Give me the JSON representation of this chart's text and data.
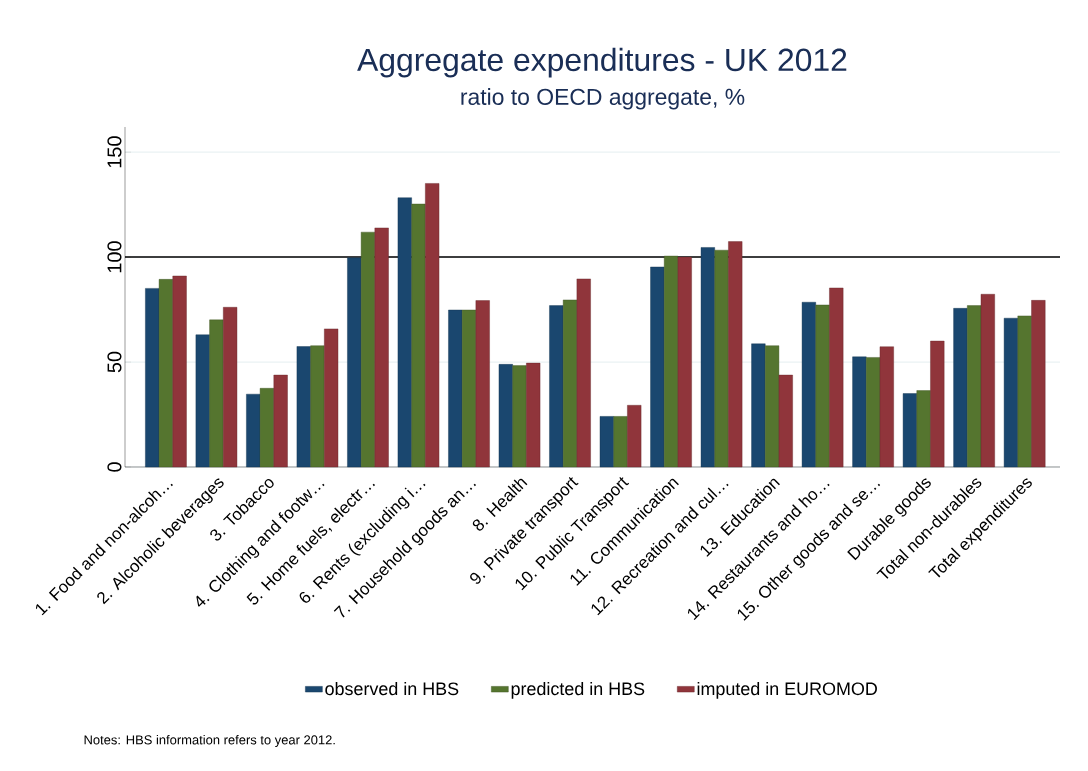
{
  "chart_data": {
    "type": "bar",
    "title": "Aggregate expenditures - UK 2012",
    "subtitle": "ratio to OECD aggregate, %",
    "categories": [
      "1. Food and non-alcoh…",
      "2. Alcoholic beverages",
      "3. Tobacco",
      "4. Clothing and footw…",
      "5. Home fuels, electr…",
      "6. Rents (excluding i…",
      "7. Household goods an…",
      "8. Health",
      "9. Private transport",
      "10. Public Transport",
      "11. Communication",
      "12. Recreation and cul…",
      "13. Education",
      "14. Restaurants and ho…",
      "15. Other goods and se…",
      "Durable goods",
      "Total non-durables",
      "Total expenditures"
    ],
    "series": [
      {
        "name": "observed in HBS",
        "color": "#1a476f",
        "values": [
          85.1,
          63.0,
          34.7,
          57.4,
          99.7,
          128.3,
          74.8,
          48.9,
          76.9,
          24.1,
          95.3,
          104.6,
          58.7,
          78.5,
          52.5,
          35.0,
          75.6,
          70.9
        ]
      },
      {
        "name": "predicted in HBS",
        "color": "#55752f",
        "values": [
          89.4,
          70.1,
          37.5,
          57.8,
          111.9,
          125.3,
          74.8,
          48.3,
          79.6,
          24.1,
          100.5,
          103.3,
          57.8,
          77.2,
          52.2,
          36.4,
          76.9,
          72.0
        ]
      },
      {
        "name": "imputed in EUROMOD",
        "color": "#90353b",
        "values": [
          91.0,
          76.1,
          43.8,
          65.8,
          113.9,
          135.1,
          79.3,
          49.5,
          89.6,
          29.4,
          100.0,
          107.4,
          43.8,
          85.3,
          57.3,
          60.0,
          82.3,
          79.4
        ]
      }
    ],
    "ylim": [
      0,
      162
    ],
    "yticks": [
      0,
      50,
      100,
      150
    ],
    "grid": "y",
    "legend": "bottom",
    "ref_lines": [
      {
        "axis": "y",
        "value": 100
      }
    ],
    "annotations": [
      "Notes: HBS information refers to year 2012."
    ]
  }
}
